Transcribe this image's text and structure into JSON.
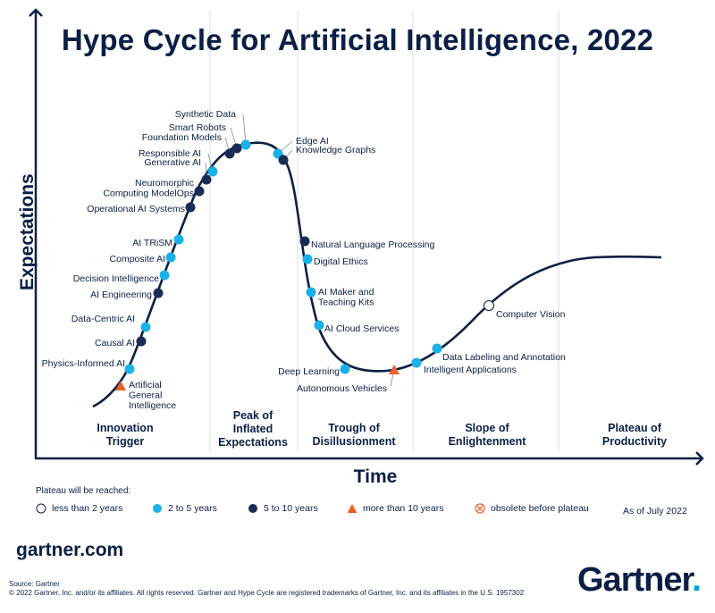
{
  "title": "Hype Cycle for Artificial Intelligence, 2022",
  "y_axis_label": "Expectations",
  "x_axis_label": "Time",
  "phases": [
    {
      "label_lines": [
        "Innovation",
        "Trigger"
      ]
    },
    {
      "label_lines": [
        "Peak of",
        "Inflated",
        "Expectations"
      ]
    },
    {
      "label_lines": [
        "Trough of",
        "Disillusionment"
      ]
    },
    {
      "label_lines": [
        "Slope of",
        "Enlightenment"
      ]
    },
    {
      "label_lines": [
        "Plateau of",
        "Productivity"
      ]
    }
  ],
  "technologies": [
    {
      "lines": [
        "Artificial",
        "General",
        "Intelligence"
      ],
      "category": "more than 10 years"
    },
    {
      "lines": [
        "Physics-Informed AI"
      ],
      "category": "2 to 5 years"
    },
    {
      "lines": [
        "Causal AI"
      ],
      "category": "5 to 10 years"
    },
    {
      "lines": [
        "Data-Centric AI"
      ],
      "category": "2 to 5 years"
    },
    {
      "lines": [
        "AI Engineering"
      ],
      "category": "5 to 10 years"
    },
    {
      "lines": [
        "Decision Intelligence"
      ],
      "category": "2 to 5 years"
    },
    {
      "lines": [
        "Composite AI"
      ],
      "category": "2 to 5 years"
    },
    {
      "lines": [
        "AI TRiSM"
      ],
      "category": "2 to 5 years"
    },
    {
      "lines": [
        "Operational AI Systems"
      ],
      "category": "5 to 10 years"
    },
    {
      "lines": [
        "Neuromorphic",
        "Computing ModelOps"
      ],
      "category": "5 to 10 years"
    },
    {
      "lines": [
        "Generative AI"
      ],
      "category": "5 to 10 years"
    },
    {
      "lines": [
        "Responsible AI"
      ],
      "category": "2 to 5 years"
    },
    {
      "lines": [
        "Foundation Models"
      ],
      "category": "5 to 10 years"
    },
    {
      "lines": [
        "Smart Robots"
      ],
      "category": "5 to 10 years"
    },
    {
      "lines": [
        "Synthetic Data"
      ],
      "category": "2 to 5 years"
    },
    {
      "lines": [
        "Edge AI"
      ],
      "category": "2 to 5 years"
    },
    {
      "lines": [
        "Knowledge Graphs"
      ],
      "category": "5 to 10 years"
    },
    {
      "lines": [
        "Natural Language Processing"
      ],
      "category": "5 to 10 years"
    },
    {
      "lines": [
        "Digital Ethics"
      ],
      "category": "2 to 5 years"
    },
    {
      "lines": [
        "AI Maker and",
        "Teaching Kits"
      ],
      "category": "2 to 5 years"
    },
    {
      "lines": [
        "AI Cloud Services"
      ],
      "category": "2 to 5 years"
    },
    {
      "lines": [
        "Deep Learning"
      ],
      "category": "2 to 5 years"
    },
    {
      "lines": [
        "Autonomous Vehicles"
      ],
      "category": "more than 10 years"
    },
    {
      "lines": [
        "Intelligent Applications"
      ],
      "category": "2 to 5 years"
    },
    {
      "lines": [
        "Data Labeling and Annotation"
      ],
      "category": "2 to 5 years"
    },
    {
      "lines": [
        "Computer Vision"
      ],
      "category": "less than 2 years"
    }
  ],
  "legend": {
    "heading": "Plateau will be reached:",
    "items": [
      {
        "label": "less than 2 years",
        "symbol": "open-circle"
      },
      {
        "label": "2 to 5 years",
        "symbol": "light-blue-dot"
      },
      {
        "label": "5 to 10 years",
        "symbol": "dark-blue-dot"
      },
      {
        "label": "more than 10 years",
        "symbol": "orange-triangle"
      },
      {
        "label": "obsolete before plateau",
        "symbol": "crossed-circle"
      }
    ],
    "as_of": "As of July 2022"
  },
  "colors": {
    "navy": "#0b1f44",
    "light_blue": "#1ab0e8",
    "dark_blue": "#1a2b55",
    "orange": "#e8632b",
    "grid": "#d9dde4",
    "curve": "#0b1f44"
  },
  "footer": {
    "site": "gartner.com",
    "source": "Source: Gartner",
    "copyright": "© 2022 Gartner, Inc. and/or its affiliates. All rights reserved. Gartner and Hype Cycle are registered trademarks of Gartner, Inc. and its affiliates in the U.S. 1957302",
    "brand": "Gartner",
    "brand_dot": "."
  }
}
